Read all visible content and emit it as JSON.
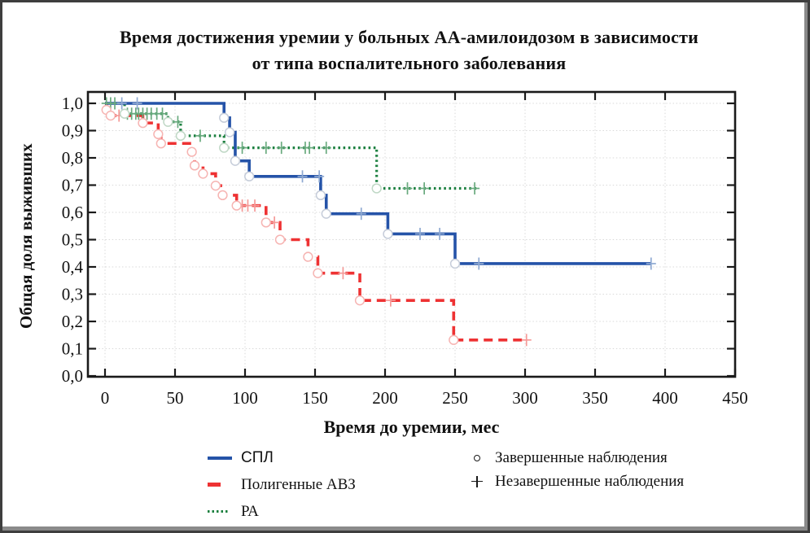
{
  "figure": {
    "title_lines": [
      "Время достижения уремии у больных АА-амилоидозом в зависимости",
      "от типа воспалительного заболевания"
    ]
  },
  "chart_data": {
    "type": "line",
    "subtype": "kaplan-meier-step-survival",
    "title": "Время достижения уремии у больных АА-амилоидозом в зависимости от типа воспалительного заболевания",
    "xlabel": "Время до уремии, мес",
    "ylabel": "Общая доля выживших",
    "x_range": [
      0,
      450
    ],
    "x_ticks": [
      0,
      50,
      100,
      150,
      200,
      250,
      300,
      350,
      400,
      450
    ],
    "y_range": [
      0.0,
      1.0
    ],
    "y_ticks": [
      0.0,
      0.1,
      0.2,
      0.3,
      0.4,
      0.5,
      0.6,
      0.7,
      0.8,
      0.9,
      1.0
    ],
    "y_tick_labels": [
      "0,0",
      "0,1",
      "0,2",
      "0,3",
      "0,4",
      "0,5",
      "0,6",
      "0,7",
      "0,8",
      "0,9",
      "1,0"
    ],
    "grid": true,
    "grid_color": "#d9d9d9",
    "frame_color": "#1a1a1a",
    "legend_position": "bottom",
    "series": [
      {
        "name": "СПЛ",
        "color": "#2553A8",
        "marker_color": "#C5CCD9",
        "censor_color": "#8EA9D2",
        "line_style": "solid",
        "steps": [
          [
            0,
            1.0
          ],
          [
            85,
            0.947
          ],
          [
            89,
            0.894
          ],
          [
            93,
            0.789
          ],
          [
            103,
            0.732
          ],
          [
            154,
            0.663
          ],
          [
            158,
            0.595
          ],
          [
            202,
            0.521
          ],
          [
            250,
            0.412
          ]
        ],
        "end_month": 390,
        "censored": [
          [
            12,
            1.0
          ],
          [
            23,
            1.0
          ],
          [
            141,
            0.732
          ],
          [
            153,
            0.732
          ],
          [
            183,
            0.595
          ],
          [
            225,
            0.521
          ],
          [
            239,
            0.521
          ],
          [
            267,
            0.412
          ],
          [
            390,
            0.412
          ]
        ]
      },
      {
        "name": "Полигенные АВЗ",
        "color": "#EE3233",
        "marker_color": "#F6B4B2",
        "censor_color": "#F59A98",
        "line_style": "dashed",
        "steps": [
          [
            0,
            1.0
          ],
          [
            1,
            0.976
          ],
          [
            4,
            0.955
          ],
          [
            27,
            0.928
          ],
          [
            38,
            0.887
          ],
          [
            40,
            0.853
          ],
          [
            62,
            0.822
          ],
          [
            64,
            0.772
          ],
          [
            70,
            0.742
          ],
          [
            79,
            0.698
          ],
          [
            84,
            0.663
          ],
          [
            94,
            0.625
          ],
          [
            115,
            0.563
          ],
          [
            125,
            0.5
          ],
          [
            145,
            0.437
          ],
          [
            152,
            0.377
          ],
          [
            182,
            0.277
          ],
          [
            249,
            0.132
          ]
        ],
        "end_month": 301,
        "censored": [
          [
            10,
            0.955
          ],
          [
            98,
            0.625
          ],
          [
            102,
            0.625
          ],
          [
            107,
            0.625
          ],
          [
            121,
            0.563
          ],
          [
            170,
            0.377
          ],
          [
            204,
            0.277
          ],
          [
            301,
            0.132
          ]
        ]
      },
      {
        "name": "РА",
        "color": "#1C8040",
        "marker_color": "#C0D8C6",
        "censor_color": "#69AA7E",
        "line_style": "dotted",
        "steps": [
          [
            0,
            1.0
          ],
          [
            14,
            0.962
          ],
          [
            45,
            0.932
          ],
          [
            54,
            0.881
          ],
          [
            85,
            0.837
          ],
          [
            194,
            0.688
          ]
        ],
        "end_month": 267,
        "censored": [
          [
            1,
            1.0
          ],
          [
            4,
            1.0
          ],
          [
            7,
            1.0
          ],
          [
            16,
            0.962
          ],
          [
            19,
            0.962
          ],
          [
            22,
            0.962
          ],
          [
            24,
            0.962
          ],
          [
            27,
            0.962
          ],
          [
            30,
            0.962
          ],
          [
            33,
            0.962
          ],
          [
            37,
            0.962
          ],
          [
            41,
            0.962
          ],
          [
            52,
            0.932
          ],
          [
            68,
            0.881
          ],
          [
            98,
            0.837
          ],
          [
            115,
            0.837
          ],
          [
            126,
            0.837
          ],
          [
            143,
            0.837
          ],
          [
            146,
            0.837
          ],
          [
            158,
            0.837
          ],
          [
            216,
            0.688
          ],
          [
            228,
            0.688
          ],
          [
            264,
            0.688
          ]
        ]
      }
    ],
    "markers_legend": [
      {
        "symbol": "circle",
        "label": "Завершенные наблюдения"
      },
      {
        "symbol": "plus",
        "label": "Незавершенные наблюдения"
      }
    ]
  }
}
